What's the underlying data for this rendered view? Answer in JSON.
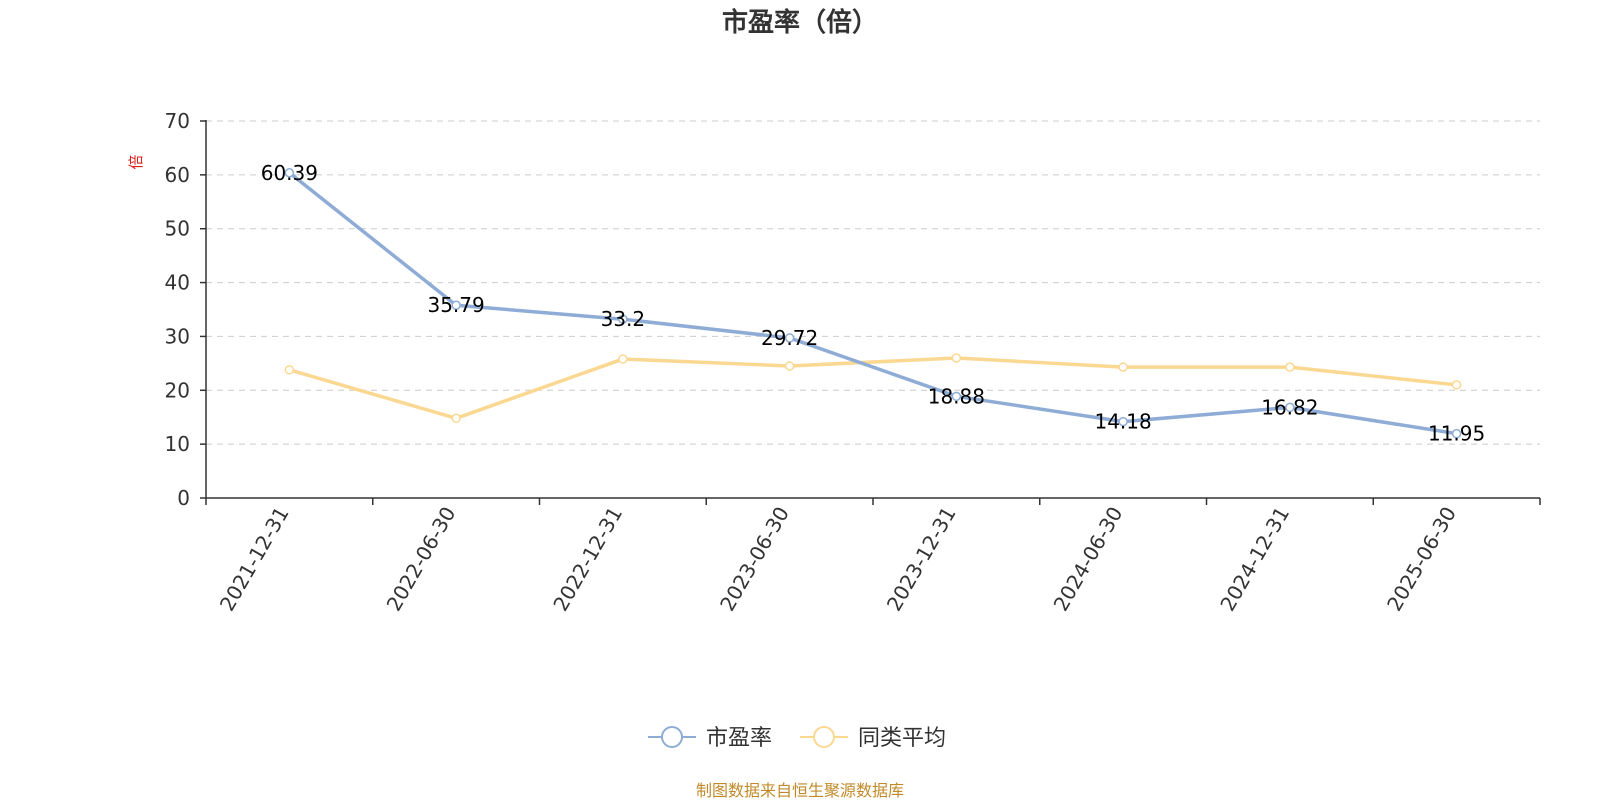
{
  "chart_data": {
    "type": "line",
    "title": "市盈率（倍）",
    "ylabel": "倍",
    "ylim": [
      0,
      70
    ],
    "yticks": [
      0,
      10,
      20,
      30,
      40,
      50,
      60,
      70
    ],
    "grid": true,
    "legend_position": "bottom-center",
    "categories": [
      "2021-12-31",
      "2022-06-30",
      "2022-12-31",
      "2023-06-30",
      "2023-12-31",
      "2024-06-30",
      "2024-12-31",
      "2025-06-30"
    ],
    "series": [
      {
        "name": "市盈率",
        "color": "#8eacd6",
        "values": [
          60.39,
          35.79,
          33.2,
          29.72,
          18.88,
          14.18,
          16.82,
          11.95
        ],
        "labels": [
          "60.39",
          "35.79",
          "33.2",
          "29.72",
          "18.88",
          "14.18",
          "16.82",
          "11.95"
        ]
      },
      {
        "name": "同类平均",
        "color": "#fad892",
        "values": [
          23.8,
          14.8,
          25.8,
          24.5,
          26.0,
          24.3,
          24.3,
          21.0
        ]
      }
    ]
  },
  "footer": {
    "source": "制图数据来自恒生聚源数据库"
  }
}
